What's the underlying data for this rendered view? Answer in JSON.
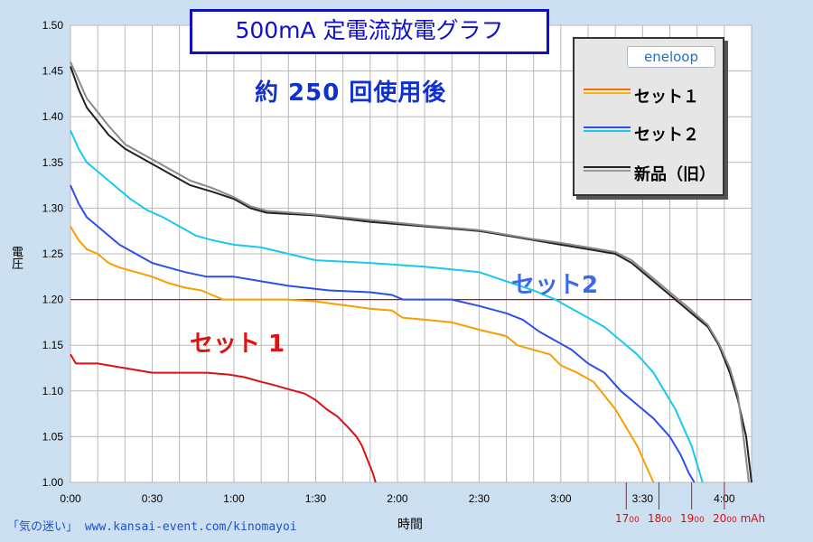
{
  "chart_data": {
    "type": "line",
    "title": "500mA 定電流放電グラフ",
    "subtitle": "約 250 回使用後",
    "xlabel": "時間",
    "ylabel": "電圧",
    "xlim": [
      0,
      250
    ],
    "ylim": [
      1.0,
      1.5
    ],
    "x_tick_labels": [
      "0:00",
      "0:30",
      "1:00",
      "1:30",
      "2:00",
      "2:30",
      "3:00",
      "3:30",
      "4:00"
    ],
    "x_ticks": [
      0,
      30,
      60,
      90,
      120,
      150,
      180,
      210,
      240
    ],
    "y_tick_labels": [
      "1.50",
      "1.45",
      "1.40",
      "1.35",
      "1.30",
      "1.25",
      "1.20",
      "1.15",
      "1.10",
      "1.05",
      "1.00"
    ],
    "y_ticks": [
      1.5,
      1.45,
      1.4,
      1.35,
      1.3,
      1.25,
      1.2,
      1.15,
      1.1,
      1.05,
      1.0
    ],
    "grid": true,
    "reference_line": {
      "y": 1.2,
      "color": "#c01010"
    },
    "legend_position": "top-right",
    "legend": [
      {
        "label": "セット１",
        "colors": [
          "#ff6a00",
          "#f5b800"
        ]
      },
      {
        "label": "セット２",
        "colors": [
          "#2a50e8",
          "#18c8f0"
        ]
      },
      {
        "label": "新品（旧）",
        "colors": [
          "#222222",
          "#999999"
        ]
      }
    ],
    "legend_logo": "eneloop",
    "annotations": [
      {
        "text": "セット 1",
        "color": "#e01010"
      },
      {
        "text": "セット2",
        "color": "#3a6ae8"
      }
    ],
    "secondary_axis": {
      "unit": "mAh",
      "labels": [
        "17",
        "18",
        "19",
        "20"
      ],
      "sub": "00",
      "x_positions_minutes": [
        204,
        216,
        228,
        240
      ]
    },
    "series": [
      {
        "name": "",
        "color": "#ffffff",
        "points": [
          [
            0,
            1.14
          ],
          [
            2,
            1.13
          ],
          [
            10,
            1.13
          ],
          [
            20,
            1.125
          ],
          [
            30,
            1.12
          ],
          [
            40,
            1.12
          ],
          [
            50,
            1.12
          ],
          [
            58,
            1.118
          ],
          [
            64,
            1.115
          ],
          [
            70,
            1.11
          ],
          [
            74,
            1.107
          ],
          [
            80,
            1.102
          ],
          [
            86,
            1.097
          ],
          [
            90,
            1.09
          ],
          [
            94,
            1.08
          ],
          [
            98,
            1.072
          ],
          [
            102,
            1.06
          ],
          [
            105,
            1.05
          ],
          [
            107,
            1.04
          ],
          [
            109,
            1.025
          ],
          [
            111,
            1.01
          ],
          [
            112,
            1.0
          ]
        ],
        "stroke": "#dc1010"
      },
      {
        "name": "",
        "color": "#f5a000",
        "points": [
          [
            0,
            1.28
          ],
          [
            3,
            1.265
          ],
          [
            6,
            1.255
          ],
          [
            10,
            1.25
          ],
          [
            14,
            1.24
          ],
          [
            18,
            1.235
          ],
          [
            24,
            1.23
          ],
          [
            30,
            1.225
          ],
          [
            36,
            1.218
          ],
          [
            42,
            1.213
          ],
          [
            48,
            1.21
          ],
          [
            52,
            1.205
          ],
          [
            56,
            1.2
          ],
          [
            70,
            1.2
          ],
          [
            80,
            1.2
          ],
          [
            90,
            1.198
          ],
          [
            100,
            1.194
          ],
          [
            110,
            1.19
          ],
          [
            118,
            1.188
          ],
          [
            122,
            1.18
          ],
          [
            130,
            1.178
          ],
          [
            140,
            1.175
          ],
          [
            150,
            1.167
          ],
          [
            160,
            1.16
          ],
          [
            164,
            1.15
          ],
          [
            170,
            1.145
          ],
          [
            176,
            1.14
          ],
          [
            180,
            1.128
          ],
          [
            186,
            1.12
          ],
          [
            192,
            1.11
          ],
          [
            196,
            1.095
          ],
          [
            200,
            1.08
          ],
          [
            204,
            1.06
          ],
          [
            208,
            1.04
          ],
          [
            211,
            1.02
          ],
          [
            214,
            1.0
          ]
        ]
      },
      {
        "name": "",
        "color": "#2a50e8",
        "points": [
          [
            0,
            1.325
          ],
          [
            3,
            1.305
          ],
          [
            6,
            1.29
          ],
          [
            10,
            1.28
          ],
          [
            14,
            1.27
          ],
          [
            18,
            1.26
          ],
          [
            24,
            1.25
          ],
          [
            30,
            1.24
          ],
          [
            36,
            1.235
          ],
          [
            42,
            1.23
          ],
          [
            50,
            1.225
          ],
          [
            60,
            1.225
          ],
          [
            70,
            1.22
          ],
          [
            80,
            1.215
          ],
          [
            95,
            1.21
          ],
          [
            110,
            1.208
          ],
          [
            118,
            1.205
          ],
          [
            122,
            1.2
          ],
          [
            130,
            1.2
          ],
          [
            140,
            1.2
          ],
          [
            150,
            1.193
          ],
          [
            160,
            1.185
          ],
          [
            166,
            1.178
          ],
          [
            172,
            1.165
          ],
          [
            178,
            1.155
          ],
          [
            184,
            1.145
          ],
          [
            190,
            1.13
          ],
          [
            196,
            1.12
          ],
          [
            202,
            1.1
          ],
          [
            208,
            1.085
          ],
          [
            214,
            1.07
          ],
          [
            220,
            1.05
          ],
          [
            224,
            1.03
          ],
          [
            227,
            1.01
          ],
          [
            229,
            1.0
          ]
        ]
      },
      {
        "name": "",
        "color": "#18c8f0",
        "points": [
          [
            0,
            1.385
          ],
          [
            3,
            1.365
          ],
          [
            6,
            1.35
          ],
          [
            10,
            1.34
          ],
          [
            16,
            1.325
          ],
          [
            22,
            1.31
          ],
          [
            28,
            1.298
          ],
          [
            34,
            1.29
          ],
          [
            40,
            1.28
          ],
          [
            46,
            1.27
          ],
          [
            52,
            1.265
          ],
          [
            60,
            1.26
          ],
          [
            70,
            1.257
          ],
          [
            80,
            1.25
          ],
          [
            90,
            1.243
          ],
          [
            110,
            1.24
          ],
          [
            130,
            1.236
          ],
          [
            150,
            1.23
          ],
          [
            160,
            1.22
          ],
          [
            170,
            1.21
          ],
          [
            178,
            1.2
          ],
          [
            184,
            1.19
          ],
          [
            190,
            1.18
          ],
          [
            196,
            1.17
          ],
          [
            202,
            1.155
          ],
          [
            208,
            1.14
          ],
          [
            214,
            1.12
          ],
          [
            218,
            1.1
          ],
          [
            222,
            1.08
          ],
          [
            225,
            1.06
          ],
          [
            228,
            1.04
          ],
          [
            230,
            1.02
          ],
          [
            232,
            1.0
          ]
        ]
      },
      {
        "name": "",
        "color": "#222222",
        "points": [
          [
            0,
            1.455
          ],
          [
            3,
            1.43
          ],
          [
            6,
            1.41
          ],
          [
            10,
            1.395
          ],
          [
            14,
            1.38
          ],
          [
            20,
            1.365
          ],
          [
            26,
            1.355
          ],
          [
            32,
            1.345
          ],
          [
            38,
            1.335
          ],
          [
            44,
            1.325
          ],
          [
            52,
            1.318
          ],
          [
            60,
            1.31
          ],
          [
            66,
            1.3
          ],
          [
            72,
            1.295
          ],
          [
            90,
            1.292
          ],
          [
            110,
            1.285
          ],
          [
            130,
            1.28
          ],
          [
            150,
            1.275
          ],
          [
            170,
            1.265
          ],
          [
            180,
            1.26
          ],
          [
            190,
            1.255
          ],
          [
            200,
            1.25
          ],
          [
            206,
            1.24
          ],
          [
            212,
            1.225
          ],
          [
            218,
            1.21
          ],
          [
            222,
            1.2
          ],
          [
            228,
            1.185
          ],
          [
            234,
            1.17
          ],
          [
            238,
            1.15
          ],
          [
            242,
            1.12
          ],
          [
            245,
            1.09
          ],
          [
            248,
            1.05
          ],
          [
            250,
            1.0
          ]
        ]
      },
      {
        "name": "",
        "color": "#8a8a8a",
        "points": [
          [
            0,
            1.46
          ],
          [
            3,
            1.44
          ],
          [
            6,
            1.42
          ],
          [
            10,
            1.405
          ],
          [
            14,
            1.39
          ],
          [
            20,
            1.37
          ],
          [
            26,
            1.36
          ],
          [
            32,
            1.35
          ],
          [
            38,
            1.34
          ],
          [
            44,
            1.33
          ],
          [
            52,
            1.322
          ],
          [
            60,
            1.312
          ],
          [
            66,
            1.302
          ],
          [
            72,
            1.297
          ],
          [
            90,
            1.293
          ],
          [
            110,
            1.287
          ],
          [
            130,
            1.281
          ],
          [
            150,
            1.276
          ],
          [
            170,
            1.266
          ],
          [
            180,
            1.262
          ],
          [
            190,
            1.257
          ],
          [
            200,
            1.252
          ],
          [
            206,
            1.243
          ],
          [
            212,
            1.228
          ],
          [
            218,
            1.213
          ],
          [
            222,
            1.203
          ],
          [
            228,
            1.188
          ],
          [
            234,
            1.172
          ],
          [
            238,
            1.152
          ],
          [
            242,
            1.125
          ],
          [
            245,
            1.095
          ],
          [
            247,
            1.05
          ],
          [
            249,
            1.0
          ]
        ]
      }
    ]
  },
  "page": {
    "credit": "「気の迷い」 www.kansai-event.com/kinomayoi"
  }
}
